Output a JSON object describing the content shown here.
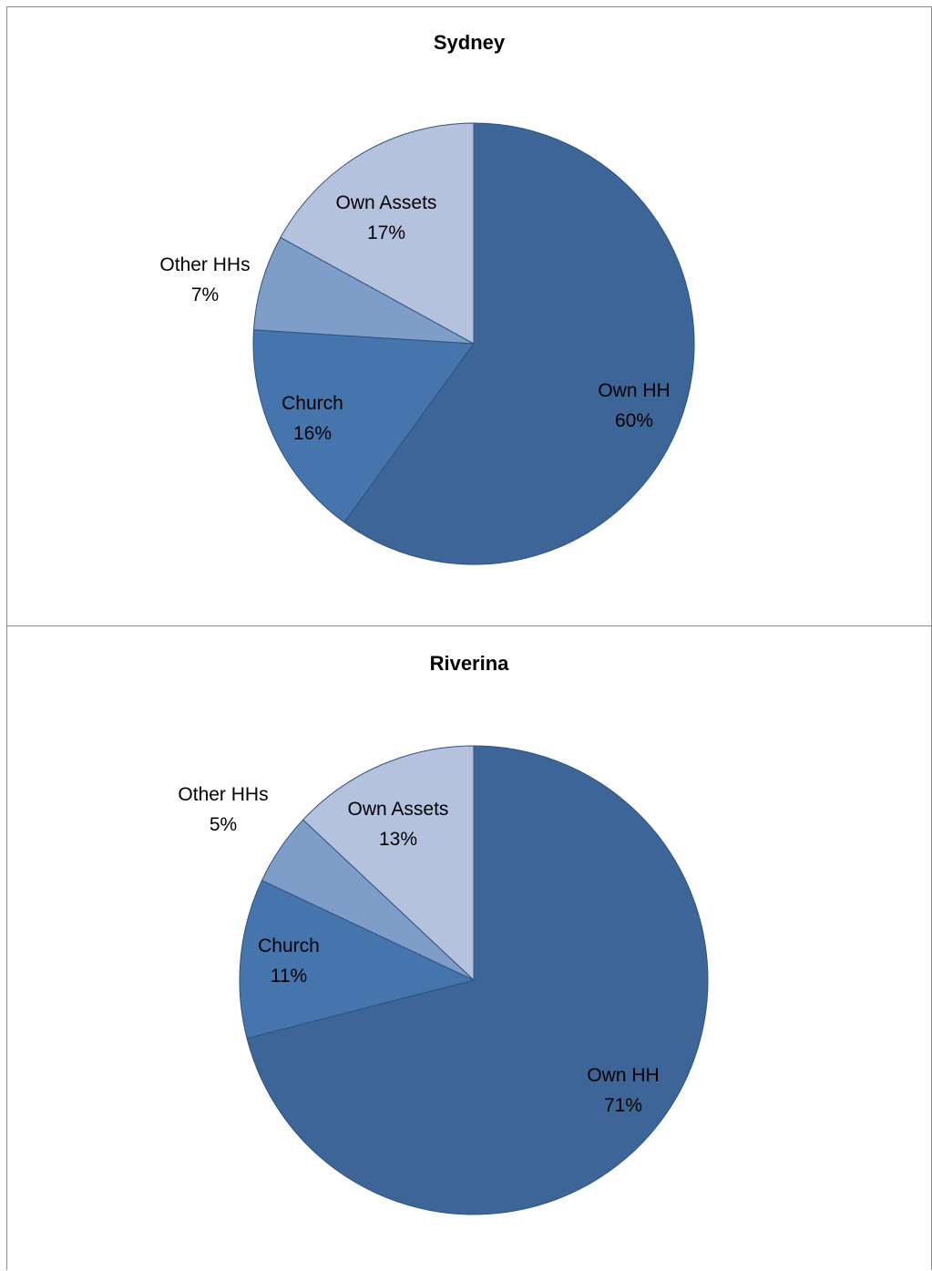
{
  "chart_data": [
    {
      "type": "pie",
      "title": "Sydney",
      "slices": [
        {
          "label": "Own HH",
          "value": 60,
          "display": "60%",
          "color": "#3d6597"
        },
        {
          "label": "Church",
          "value": 16,
          "display": "16%",
          "color": "#4675ae"
        },
        {
          "label": "Other HHs",
          "value": 7,
          "display": "7%",
          "color": "#7f9dc9"
        },
        {
          "label": "Own Assets",
          "value": 17,
          "display": "17%",
          "color": "#b4c2de"
        }
      ],
      "legend": "none"
    },
    {
      "type": "pie",
      "title": "Riverina",
      "slices": [
        {
          "label": "Own HH",
          "value": 71,
          "display": "71%",
          "color": "#3d6597"
        },
        {
          "label": "Church",
          "value": 11,
          "display": "11%",
          "color": "#4675ae"
        },
        {
          "label": "Other HHs",
          "value": 5,
          "display": "5%",
          "color": "#7f9dc9"
        },
        {
          "label": "Own Assets",
          "value": 13,
          "display": "13%",
          "color": "#b4c2de"
        }
      ],
      "legend": "none"
    }
  ]
}
